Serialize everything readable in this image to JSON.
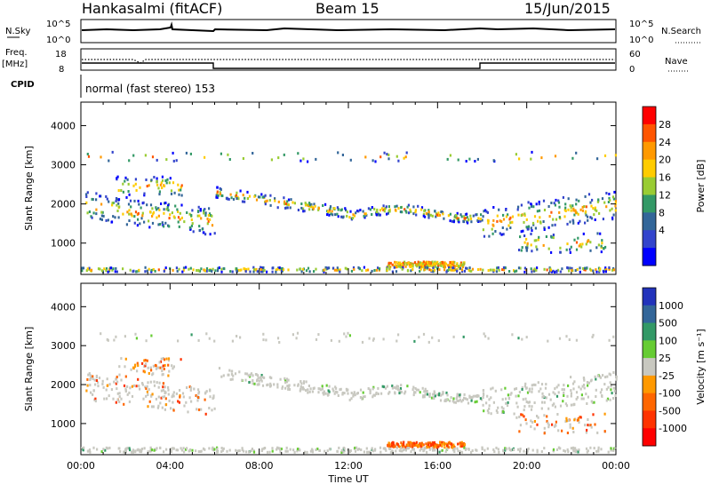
{
  "header": {
    "station": "Hankasalmi (fitACF)",
    "beam": "Beam 15",
    "date": "15/Jun/2015"
  },
  "labels": {
    "nsky": "N.Sky",
    "nsearch": "N.Search",
    "freq": "Freq.",
    "freq_unit": "[MHz]",
    "nave": "Nave",
    "cpid": "CPID",
    "cpid_value": "normal (fast stereo) 153",
    "xlabel": "Time UT",
    "ylabel": "Slant Range [km]",
    "noise_top": "10^5",
    "noise_bottom": "10^0",
    "freq_top": "18",
    "freq_bottom": "8",
    "nave_top": "60",
    "nave_bottom": "0"
  },
  "chart_data": [
    {
      "type": "heatmap",
      "panel": "power",
      "x": [
        "00:00",
        "04:00",
        "08:00",
        "12:00",
        "16:00",
        "20:00",
        "00:00"
      ],
      "ylabel": "Slant Range [km]",
      "ylim": [
        200,
        4600
      ],
      "yticks": [
        "1000",
        "2000",
        "3000",
        "4000"
      ],
      "colorbar": {
        "label": "Power [dB]",
        "ticks": [
          "28",
          "24",
          "20",
          "16",
          "12",
          "8",
          "4"
        ],
        "colors": [
          "#ff0000",
          "#ff5500",
          "#ff9900",
          "#ffcc00",
          "#99cc33",
          "#339966",
          "#336699",
          "#3344cc",
          "#0000ff"
        ]
      }
    },
    {
      "type": "heatmap",
      "panel": "velocity",
      "x": [
        "00:00",
        "04:00",
        "08:00",
        "12:00",
        "16:00",
        "20:00",
        "00:00"
      ],
      "xlabel": "Time UT",
      "ylabel": "Slant Range [km]",
      "ylim": [
        200,
        4600
      ],
      "yticks": [
        "1000",
        "2000",
        "3000",
        "4000"
      ],
      "colorbar": {
        "label": "Velocity [m s⁻¹]",
        "ticks": [
          "1000",
          "500",
          "100",
          "25",
          "-25",
          "-100",
          "-500",
          "-1000"
        ],
        "colors": [
          "#2233bb",
          "#336699",
          "#339966",
          "#66cc33",
          "#c8c8c0",
          "#ff9900",
          "#ff6600",
          "#ff3300",
          "#ff0000"
        ]
      }
    }
  ]
}
